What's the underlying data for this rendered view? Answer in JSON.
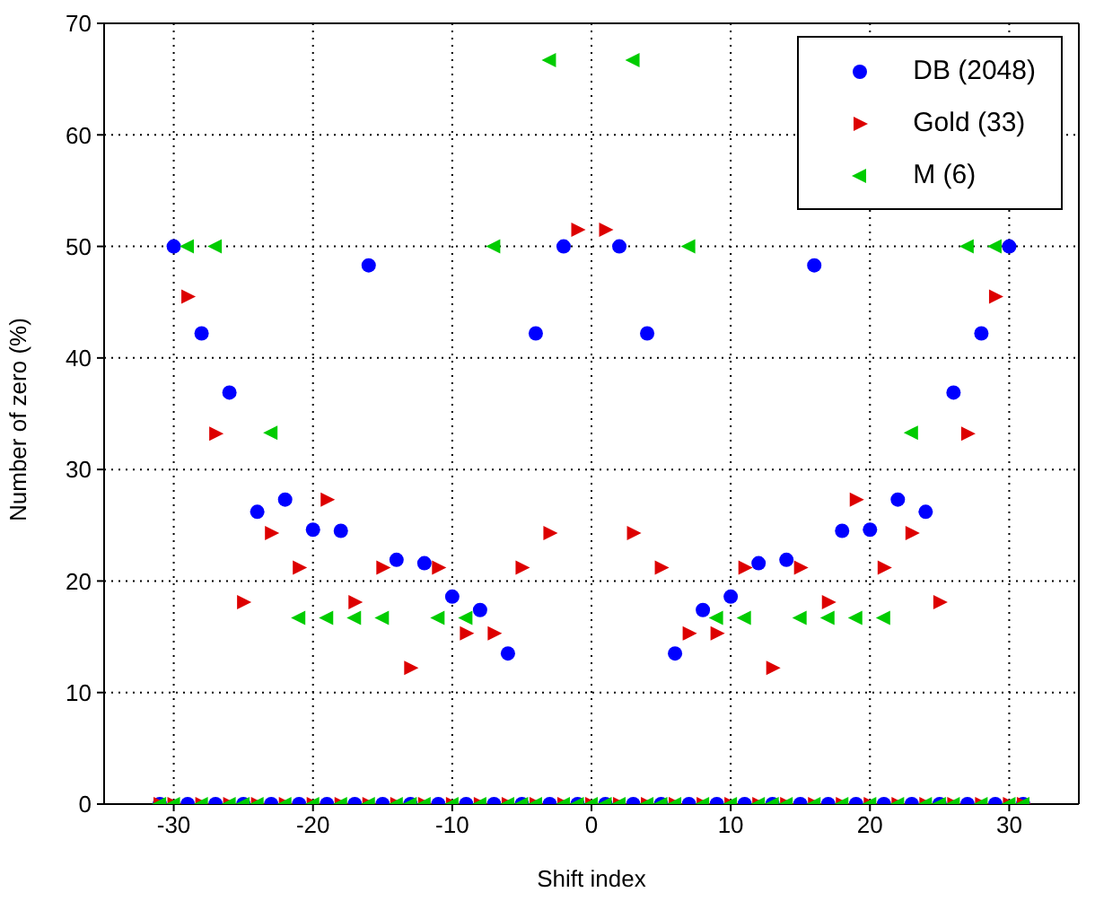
{
  "chart_data": {
    "type": "scatter",
    "xlabel": "Shift index",
    "ylabel": "Number of zero (%)",
    "xlim": [
      -35,
      35
    ],
    "xticks": [
      -30,
      -20,
      -10,
      0,
      10,
      20,
      30
    ],
    "ylim": [
      0,
      70
    ],
    "yticks": [
      0,
      10,
      20,
      30,
      40,
      50,
      60,
      70
    ],
    "grid": true,
    "legend": "top right",
    "series": [
      {
        "name": "DB (2048)",
        "color": "#0000ff",
        "marker": "circle",
        "x": [
          -31,
          -30,
          -29,
          -28,
          -27,
          -26,
          -25,
          -24,
          -23,
          -22,
          -21,
          -20,
          -19,
          -18,
          -17,
          -16,
          -15,
          -14,
          -13,
          -12,
          -11,
          -10,
          -9,
          -8,
          -7,
          -6,
          -5,
          -4,
          -3,
          -2,
          -1,
          1,
          2,
          3,
          4,
          5,
          6,
          7,
          8,
          9,
          10,
          11,
          12,
          13,
          14,
          15,
          16,
          17,
          18,
          19,
          20,
          21,
          22,
          23,
          24,
          25,
          26,
          27,
          28,
          29,
          30,
          31
        ],
        "values": [
          0,
          50,
          0,
          42.2,
          0,
          36.9,
          0,
          26.2,
          0,
          27.3,
          0,
          24.6,
          0,
          24.5,
          0,
          48.3,
          0,
          21.9,
          0,
          21.6,
          0,
          18.6,
          0,
          17.4,
          0,
          13.5,
          0,
          42.2,
          0,
          50,
          0,
          0,
          50,
          0,
          42.2,
          0,
          13.5,
          0,
          17.4,
          0,
          18.6,
          0,
          21.6,
          0,
          21.9,
          0,
          48.3,
          0,
          24.5,
          0,
          24.6,
          0,
          27.3,
          0,
          26.2,
          0,
          36.9,
          0,
          42.2,
          0,
          50,
          0
        ]
      },
      {
        "name": "Gold (33)",
        "color": "#dd0000",
        "marker": "triangle",
        "x": [
          -31,
          -30,
          -29,
          -28,
          -27,
          -26,
          -25,
          -24,
          -23,
          -22,
          -21,
          -20,
          -19,
          -18,
          -17,
          -16,
          -15,
          -14,
          -13,
          -12,
          -11,
          -10,
          -9,
          -8,
          -7,
          -6,
          -5,
          -4,
          -3,
          -2,
          -1,
          0,
          1,
          2,
          3,
          4,
          5,
          6,
          7,
          8,
          9,
          10,
          11,
          12,
          13,
          14,
          15,
          16,
          17,
          18,
          19,
          20,
          21,
          22,
          23,
          24,
          25,
          26,
          27,
          28,
          29,
          30,
          31
        ],
        "values": [
          0,
          0,
          45.5,
          0,
          33.2,
          0,
          18.1,
          0,
          24.3,
          0,
          21.2,
          0,
          27.3,
          0,
          18.1,
          0,
          21.2,
          0,
          12.2,
          0,
          21.2,
          0,
          15.3,
          0,
          15.3,
          0,
          21.2,
          0,
          24.3,
          0,
          51.5,
          0,
          51.5,
          0,
          24.3,
          0,
          21.2,
          0,
          15.3,
          0,
          15.3,
          0,
          21.2,
          0,
          12.2,
          0,
          21.2,
          0,
          18.1,
          0,
          27.3,
          0,
          21.2,
          0,
          24.3,
          0,
          18.1,
          0,
          33.2,
          0,
          45.5,
          0,
          0
        ]
      },
      {
        "name": "M (6)",
        "color": "#00cc00",
        "marker": "triangle-left",
        "x": [
          -31,
          -30,
          -29,
          -28,
          -27,
          -26,
          -25,
          -24,
          -23,
          -22,
          -21,
          -20,
          -19,
          -18,
          -17,
          -16,
          -15,
          -14,
          -13,
          -12,
          -11,
          -10,
          -9,
          -8,
          -7,
          -6,
          -5,
          -4,
          -3,
          -2,
          -1,
          0,
          1,
          2,
          3,
          4,
          5,
          6,
          7,
          8,
          9,
          10,
          11,
          12,
          13,
          14,
          15,
          16,
          17,
          18,
          19,
          20,
          21,
          22,
          23,
          24,
          25,
          26,
          27,
          28,
          29,
          30,
          31
        ],
        "values": [
          0,
          0,
          50,
          0,
          50,
          0,
          0,
          0,
          33.3,
          0,
          16.7,
          0,
          16.7,
          0,
          16.7,
          0,
          16.7,
          0,
          0,
          0,
          16.7,
          0,
          16.7,
          0,
          50,
          0,
          0,
          0,
          66.7,
          0,
          0,
          0,
          0,
          0,
          66.7,
          0,
          0,
          0,
          50,
          0,
          16.7,
          0,
          16.7,
          0,
          0,
          0,
          16.7,
          0,
          16.7,
          0,
          16.7,
          0,
          16.7,
          0,
          33.3,
          0,
          0,
          0,
          50,
          0,
          50,
          0,
          0
        ]
      }
    ]
  }
}
